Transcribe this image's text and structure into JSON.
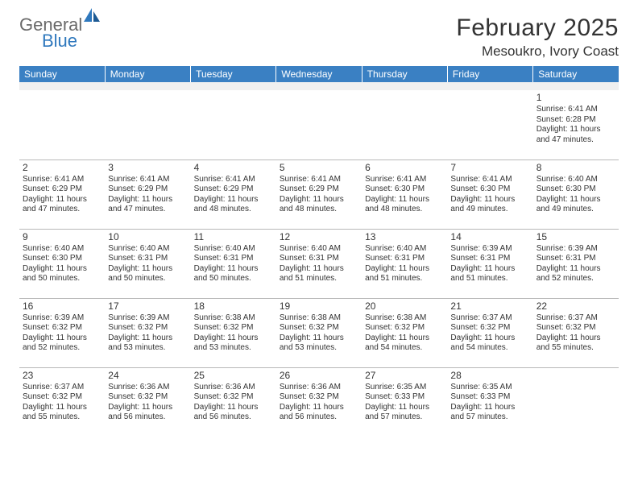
{
  "logo": {
    "general": "General",
    "blue": "Blue"
  },
  "title": "February 2025",
  "location": "Mesoukro, Ivory Coast",
  "colors": {
    "header_bg": "#3a80c3",
    "header_text": "#ffffff",
    "blank_bg": "#f0f0f0",
    "text": "#333333",
    "logo_gray": "#6a6a6a",
    "logo_blue": "#2f78bd",
    "divider": "#b8b8b8"
  },
  "weekdays": [
    "Sunday",
    "Monday",
    "Tuesday",
    "Wednesday",
    "Thursday",
    "Friday",
    "Saturday"
  ],
  "weeks": [
    [
      null,
      null,
      null,
      null,
      null,
      null,
      {
        "d": "1",
        "sr": "6:41 AM",
        "ss": "6:28 PM",
        "dl": "11 hours and 47 minutes."
      }
    ],
    [
      {
        "d": "2",
        "sr": "6:41 AM",
        "ss": "6:29 PM",
        "dl": "11 hours and 47 minutes."
      },
      {
        "d": "3",
        "sr": "6:41 AM",
        "ss": "6:29 PM",
        "dl": "11 hours and 47 minutes."
      },
      {
        "d": "4",
        "sr": "6:41 AM",
        "ss": "6:29 PM",
        "dl": "11 hours and 48 minutes."
      },
      {
        "d": "5",
        "sr": "6:41 AM",
        "ss": "6:29 PM",
        "dl": "11 hours and 48 minutes."
      },
      {
        "d": "6",
        "sr": "6:41 AM",
        "ss": "6:30 PM",
        "dl": "11 hours and 48 minutes."
      },
      {
        "d": "7",
        "sr": "6:41 AM",
        "ss": "6:30 PM",
        "dl": "11 hours and 49 minutes."
      },
      {
        "d": "8",
        "sr": "6:40 AM",
        "ss": "6:30 PM",
        "dl": "11 hours and 49 minutes."
      }
    ],
    [
      {
        "d": "9",
        "sr": "6:40 AM",
        "ss": "6:30 PM",
        "dl": "11 hours and 50 minutes."
      },
      {
        "d": "10",
        "sr": "6:40 AM",
        "ss": "6:31 PM",
        "dl": "11 hours and 50 minutes."
      },
      {
        "d": "11",
        "sr": "6:40 AM",
        "ss": "6:31 PM",
        "dl": "11 hours and 50 minutes."
      },
      {
        "d": "12",
        "sr": "6:40 AM",
        "ss": "6:31 PM",
        "dl": "11 hours and 51 minutes."
      },
      {
        "d": "13",
        "sr": "6:40 AM",
        "ss": "6:31 PM",
        "dl": "11 hours and 51 minutes."
      },
      {
        "d": "14",
        "sr": "6:39 AM",
        "ss": "6:31 PM",
        "dl": "11 hours and 51 minutes."
      },
      {
        "d": "15",
        "sr": "6:39 AM",
        "ss": "6:31 PM",
        "dl": "11 hours and 52 minutes."
      }
    ],
    [
      {
        "d": "16",
        "sr": "6:39 AM",
        "ss": "6:32 PM",
        "dl": "11 hours and 52 minutes."
      },
      {
        "d": "17",
        "sr": "6:39 AM",
        "ss": "6:32 PM",
        "dl": "11 hours and 53 minutes."
      },
      {
        "d": "18",
        "sr": "6:38 AM",
        "ss": "6:32 PM",
        "dl": "11 hours and 53 minutes."
      },
      {
        "d": "19",
        "sr": "6:38 AM",
        "ss": "6:32 PM",
        "dl": "11 hours and 53 minutes."
      },
      {
        "d": "20",
        "sr": "6:38 AM",
        "ss": "6:32 PM",
        "dl": "11 hours and 54 minutes."
      },
      {
        "d": "21",
        "sr": "6:37 AM",
        "ss": "6:32 PM",
        "dl": "11 hours and 54 minutes."
      },
      {
        "d": "22",
        "sr": "6:37 AM",
        "ss": "6:32 PM",
        "dl": "11 hours and 55 minutes."
      }
    ],
    [
      {
        "d": "23",
        "sr": "6:37 AM",
        "ss": "6:32 PM",
        "dl": "11 hours and 55 minutes."
      },
      {
        "d": "24",
        "sr": "6:36 AM",
        "ss": "6:32 PM",
        "dl": "11 hours and 56 minutes."
      },
      {
        "d": "25",
        "sr": "6:36 AM",
        "ss": "6:32 PM",
        "dl": "11 hours and 56 minutes."
      },
      {
        "d": "26",
        "sr": "6:36 AM",
        "ss": "6:32 PM",
        "dl": "11 hours and 56 minutes."
      },
      {
        "d": "27",
        "sr": "6:35 AM",
        "ss": "6:33 PM",
        "dl": "11 hours and 57 minutes."
      },
      {
        "d": "28",
        "sr": "6:35 AM",
        "ss": "6:33 PM",
        "dl": "11 hours and 57 minutes."
      },
      null
    ]
  ],
  "labels": {
    "sunrise": "Sunrise:",
    "sunset": "Sunset:",
    "daylight": "Daylight:"
  }
}
